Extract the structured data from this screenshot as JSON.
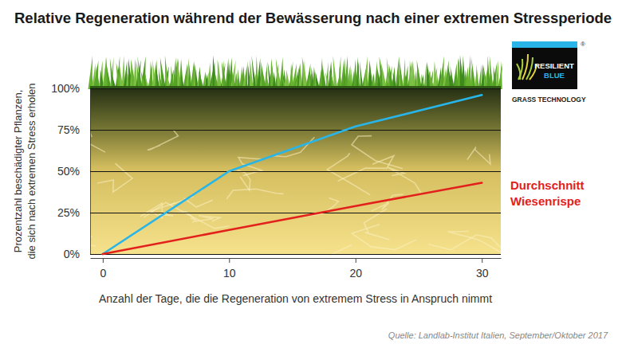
{
  "chart_data": {
    "type": "line",
    "title": "Relative Regeneration während der Bewässerung nach einer extremen Stressperiode",
    "x_label": "Anzahl der Tage, die die Regeneration von extremem Stress in Anspruch nimmt",
    "y_label": "Prozentzahl beschädigter Pflanzen, die sich nach extremen Stress erholen",
    "source": "Quelle: Landlab-Institut Italien, September/Oktober 2017",
    "annotations": [
      "®",
      "GRASS TECHNOLOGY"
    ],
    "x": [
      0,
      10,
      20,
      30
    ],
    "series": [
      {
        "name": "RESILIENT BLUE",
        "color": "#29b5e8",
        "values": [
          0,
          50,
          77,
          96
        ]
      },
      {
        "name": "Durchschnitt Wiesenrispe",
        "color": "#e3211c",
        "values": [
          0,
          14.5,
          29,
          43
        ]
      }
    ],
    "xlim": [
      -1,
      31.5
    ],
    "xticks": [
      0,
      10,
      20,
      30
    ],
    "ylim": [
      0,
      100
    ],
    "yticks": [
      {
        "value": 0,
        "label": "0%"
      },
      {
        "value": 25,
        "label": "25%"
      },
      {
        "value": 50,
        "label": "50%"
      },
      {
        "value": 75,
        "label": "75%"
      },
      {
        "value": 100,
        "label": "100%"
      }
    ],
    "grid": true,
    "legend": "right"
  }
}
